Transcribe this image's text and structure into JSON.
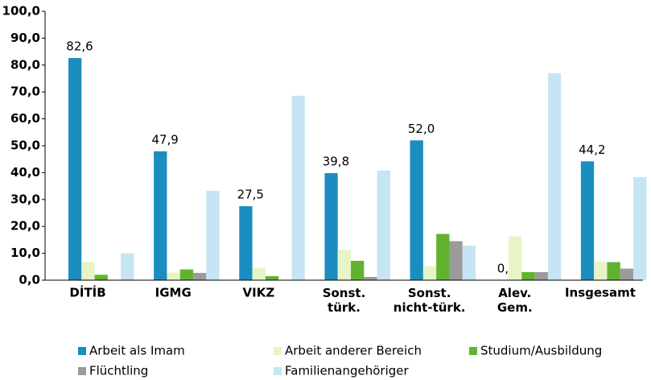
{
  "chart_data": {
    "type": "bar",
    "categories": [
      "DİTİB",
      "IGMG",
      "VIKZ",
      "Sonst. türk.",
      "Sonst. nicht-türk.",
      "Alev. Gem.",
      "Insgesamt"
    ],
    "series": [
      {
        "name": "Arbeit als Imam",
        "color": "#1b8dbf",
        "values": [
          82.6,
          47.9,
          27.5,
          39.8,
          52.0,
          0.0,
          44.2
        ],
        "value_labels": [
          "82,6",
          "47,9",
          "27,5",
          "39,8",
          "52,0",
          "0,0",
          "44,2"
        ]
      },
      {
        "name": "Arbeit anderer Bereich",
        "color": "#e6f4c6",
        "values": [
          6.8,
          2.8,
          4.6,
          11.2,
          5.2,
          16.3,
          7.0
        ]
      },
      {
        "name": "Studium/Ausbildung",
        "color": "#62b22f",
        "values": [
          2.0,
          4.0,
          1.5,
          7.2,
          17.2,
          3.0,
          6.7
        ]
      },
      {
        "name": "Flüchtling",
        "color": "#9b9b9b",
        "values": [
          0,
          2.7,
          0,
          1.2,
          14.5,
          3.0,
          4.3
        ]
      },
      {
        "name": "Familienangehöriger",
        "color": "#c6e5f2",
        "values": [
          10.0,
          33.2,
          68.6,
          40.8,
          12.8,
          77.0,
          38.3
        ]
      }
    ],
    "ylim": [
      0,
      100
    ],
    "yticks": [
      {
        "value": 0,
        "label": "0,0"
      },
      {
        "value": 10,
        "label": "10,0"
      },
      {
        "value": 20,
        "label": "20,0"
      },
      {
        "value": 30,
        "label": "30,0"
      },
      {
        "value": 40,
        "label": "40,0"
      },
      {
        "value": 50,
        "label": "50,0"
      },
      {
        "value": 60,
        "label": "60,0"
      },
      {
        "value": 70,
        "label": "70,0"
      },
      {
        "value": 80,
        "label": "80,0"
      },
      {
        "value": 90,
        "label": "90,0"
      },
      {
        "value": 100,
        "label": "100,0"
      }
    ],
    "grid": false
  }
}
